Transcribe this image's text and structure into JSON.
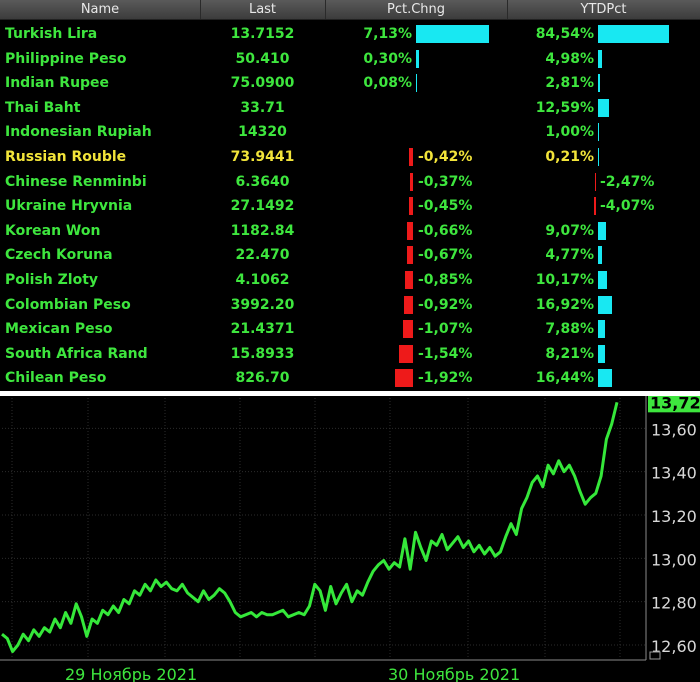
{
  "colors": {
    "positive_text": "#3ee63e",
    "highlight_text": "#f2e43a",
    "bar_positive": "#18e8f2",
    "bar_negative": "#ee1a1a",
    "line": "#35e83a",
    "price_box": "#3ee63e"
  },
  "table": {
    "headers": [
      "Name",
      "Last",
      "Pct.Chng",
      "YTDPct"
    ],
    "rows": [
      {
        "name": "Turkish Lira",
        "last": "13.7152",
        "pct": "7,13%",
        "pct_value": 7.13,
        "ytd": "84,54%",
        "ytd_value": 84.54
      },
      {
        "name": "Philippine Peso",
        "last": "50.410",
        "pct": "0,30%",
        "pct_value": 0.3,
        "ytd": "4,98%",
        "ytd_value": 4.98
      },
      {
        "name": "Indian Rupee",
        "last": "75.0900",
        "pct": "0,08%",
        "pct_value": 0.08,
        "ytd": "2,81%",
        "ytd_value": 2.81
      },
      {
        "name": "Thai Baht",
        "last": "33.71",
        "pct": "",
        "pct_value": 0,
        "ytd": "12,59%",
        "ytd_value": 12.59
      },
      {
        "name": "Indonesian Rupiah",
        "last": "14320",
        "pct": "",
        "pct_value": 0,
        "ytd": "1,00%",
        "ytd_value": 1.0
      },
      {
        "name": "Russian Rouble",
        "last": "73.9441",
        "pct": "-0,42%",
        "pct_value": -0.42,
        "ytd": "0,21%",
        "ytd_value": 0.21,
        "highlight": true
      },
      {
        "name": "Chinese Renminbi",
        "last": "6.3640",
        "pct": "-0,37%",
        "pct_value": -0.37,
        "ytd": "-2,47%",
        "ytd_value": -2.47
      },
      {
        "name": "Ukraine Hryvnia",
        "last": "27.1492",
        "pct": "-0,45%",
        "pct_value": -0.45,
        "ytd": "-4,07%",
        "ytd_value": -4.07
      },
      {
        "name": "Korean Won",
        "last": "1182.84",
        "pct": "-0,66%",
        "pct_value": -0.66,
        "ytd": "9,07%",
        "ytd_value": 9.07
      },
      {
        "name": "Czech Koruna",
        "last": "22.470",
        "pct": "-0,67%",
        "pct_value": -0.67,
        "ytd": "4,77%",
        "ytd_value": 4.77
      },
      {
        "name": "Polish Zloty",
        "last": "4.1062",
        "pct": "-0,85%",
        "pct_value": -0.85,
        "ytd": "10,17%",
        "ytd_value": 10.17
      },
      {
        "name": "Colombian Peso",
        "last": "3992.20",
        "pct": "-0,92%",
        "pct_value": -0.92,
        "ytd": "16,92%",
        "ytd_value": 16.92
      },
      {
        "name": "Mexican Peso",
        "last": "21.4371",
        "pct": "-1,07%",
        "pct_value": -1.07,
        "ytd": "7,88%",
        "ytd_value": 7.88
      },
      {
        "name": "South Africa Rand",
        "last": "15.8933",
        "pct": "-1,54%",
        "pct_value": -1.54,
        "ytd": "8,21%",
        "ytd_value": 8.21
      },
      {
        "name": "Chilean Peso",
        "last": "826.70",
        "pct": "-1,92%",
        "pct_value": -1.92,
        "ytd": "16,44%",
        "ytd_value": 16.44
      }
    ]
  },
  "chart_data": {
    "type": "line",
    "yticks": [
      "13,60",
      "13,40",
      "13,20",
      "13,00",
      "12,80",
      "12,60"
    ],
    "ytick_values": [
      13.6,
      13.4,
      13.2,
      13.0,
      12.8,
      12.6
    ],
    "ylim": [
      12.54,
      13.74
    ],
    "xlabels": [
      "29 Ноябрь 2021",
      "30 Ноябрь 2021"
    ],
    "last_price": "13,72",
    "grid": true,
    "series": [
      {
        "y": [
          12.65,
          12.63,
          12.57,
          12.6,
          12.65,
          12.62,
          12.67,
          12.64,
          12.68,
          12.66,
          12.72,
          12.68,
          12.75,
          12.7,
          12.79,
          12.73,
          12.64,
          12.72,
          12.7,
          12.76,
          12.74,
          12.78,
          12.75,
          12.81,
          12.79,
          12.85,
          12.83,
          12.88,
          12.85,
          12.9,
          12.87,
          12.89,
          12.86,
          12.85,
          12.88,
          12.84,
          12.82,
          12.8,
          12.85,
          12.81,
          12.83,
          12.86,
          12.84,
          12.8,
          12.75,
          12.73,
          12.74,
          12.75,
          12.73,
          12.75,
          12.74,
          12.74,
          12.75,
          12.76,
          12.73,
          12.74,
          12.75,
          12.74,
          12.78,
          12.88,
          12.85,
          12.76,
          12.87,
          12.79,
          12.84,
          12.88,
          12.8,
          12.85,
          12.83,
          12.89,
          12.94,
          12.97,
          12.99,
          12.95,
          12.98,
          12.96,
          13.09,
          12.95,
          13.12,
          13.05,
          12.99,
          13.08,
          13.06,
          13.11,
          13.04,
          13.07,
          13.1,
          13.05,
          13.08,
          13.03,
          13.06,
          13.02,
          13.05,
          13.01,
          13.03,
          13.1,
          13.16,
          13.11,
          13.23,
          13.28,
          13.35,
          13.38,
          13.33,
          13.43,
          13.39,
          13.45,
          13.4,
          13.43,
          13.38,
          13.31,
          13.25,
          13.28,
          13.3,
          13.38,
          13.55,
          13.62,
          13.72
        ]
      }
    ]
  }
}
